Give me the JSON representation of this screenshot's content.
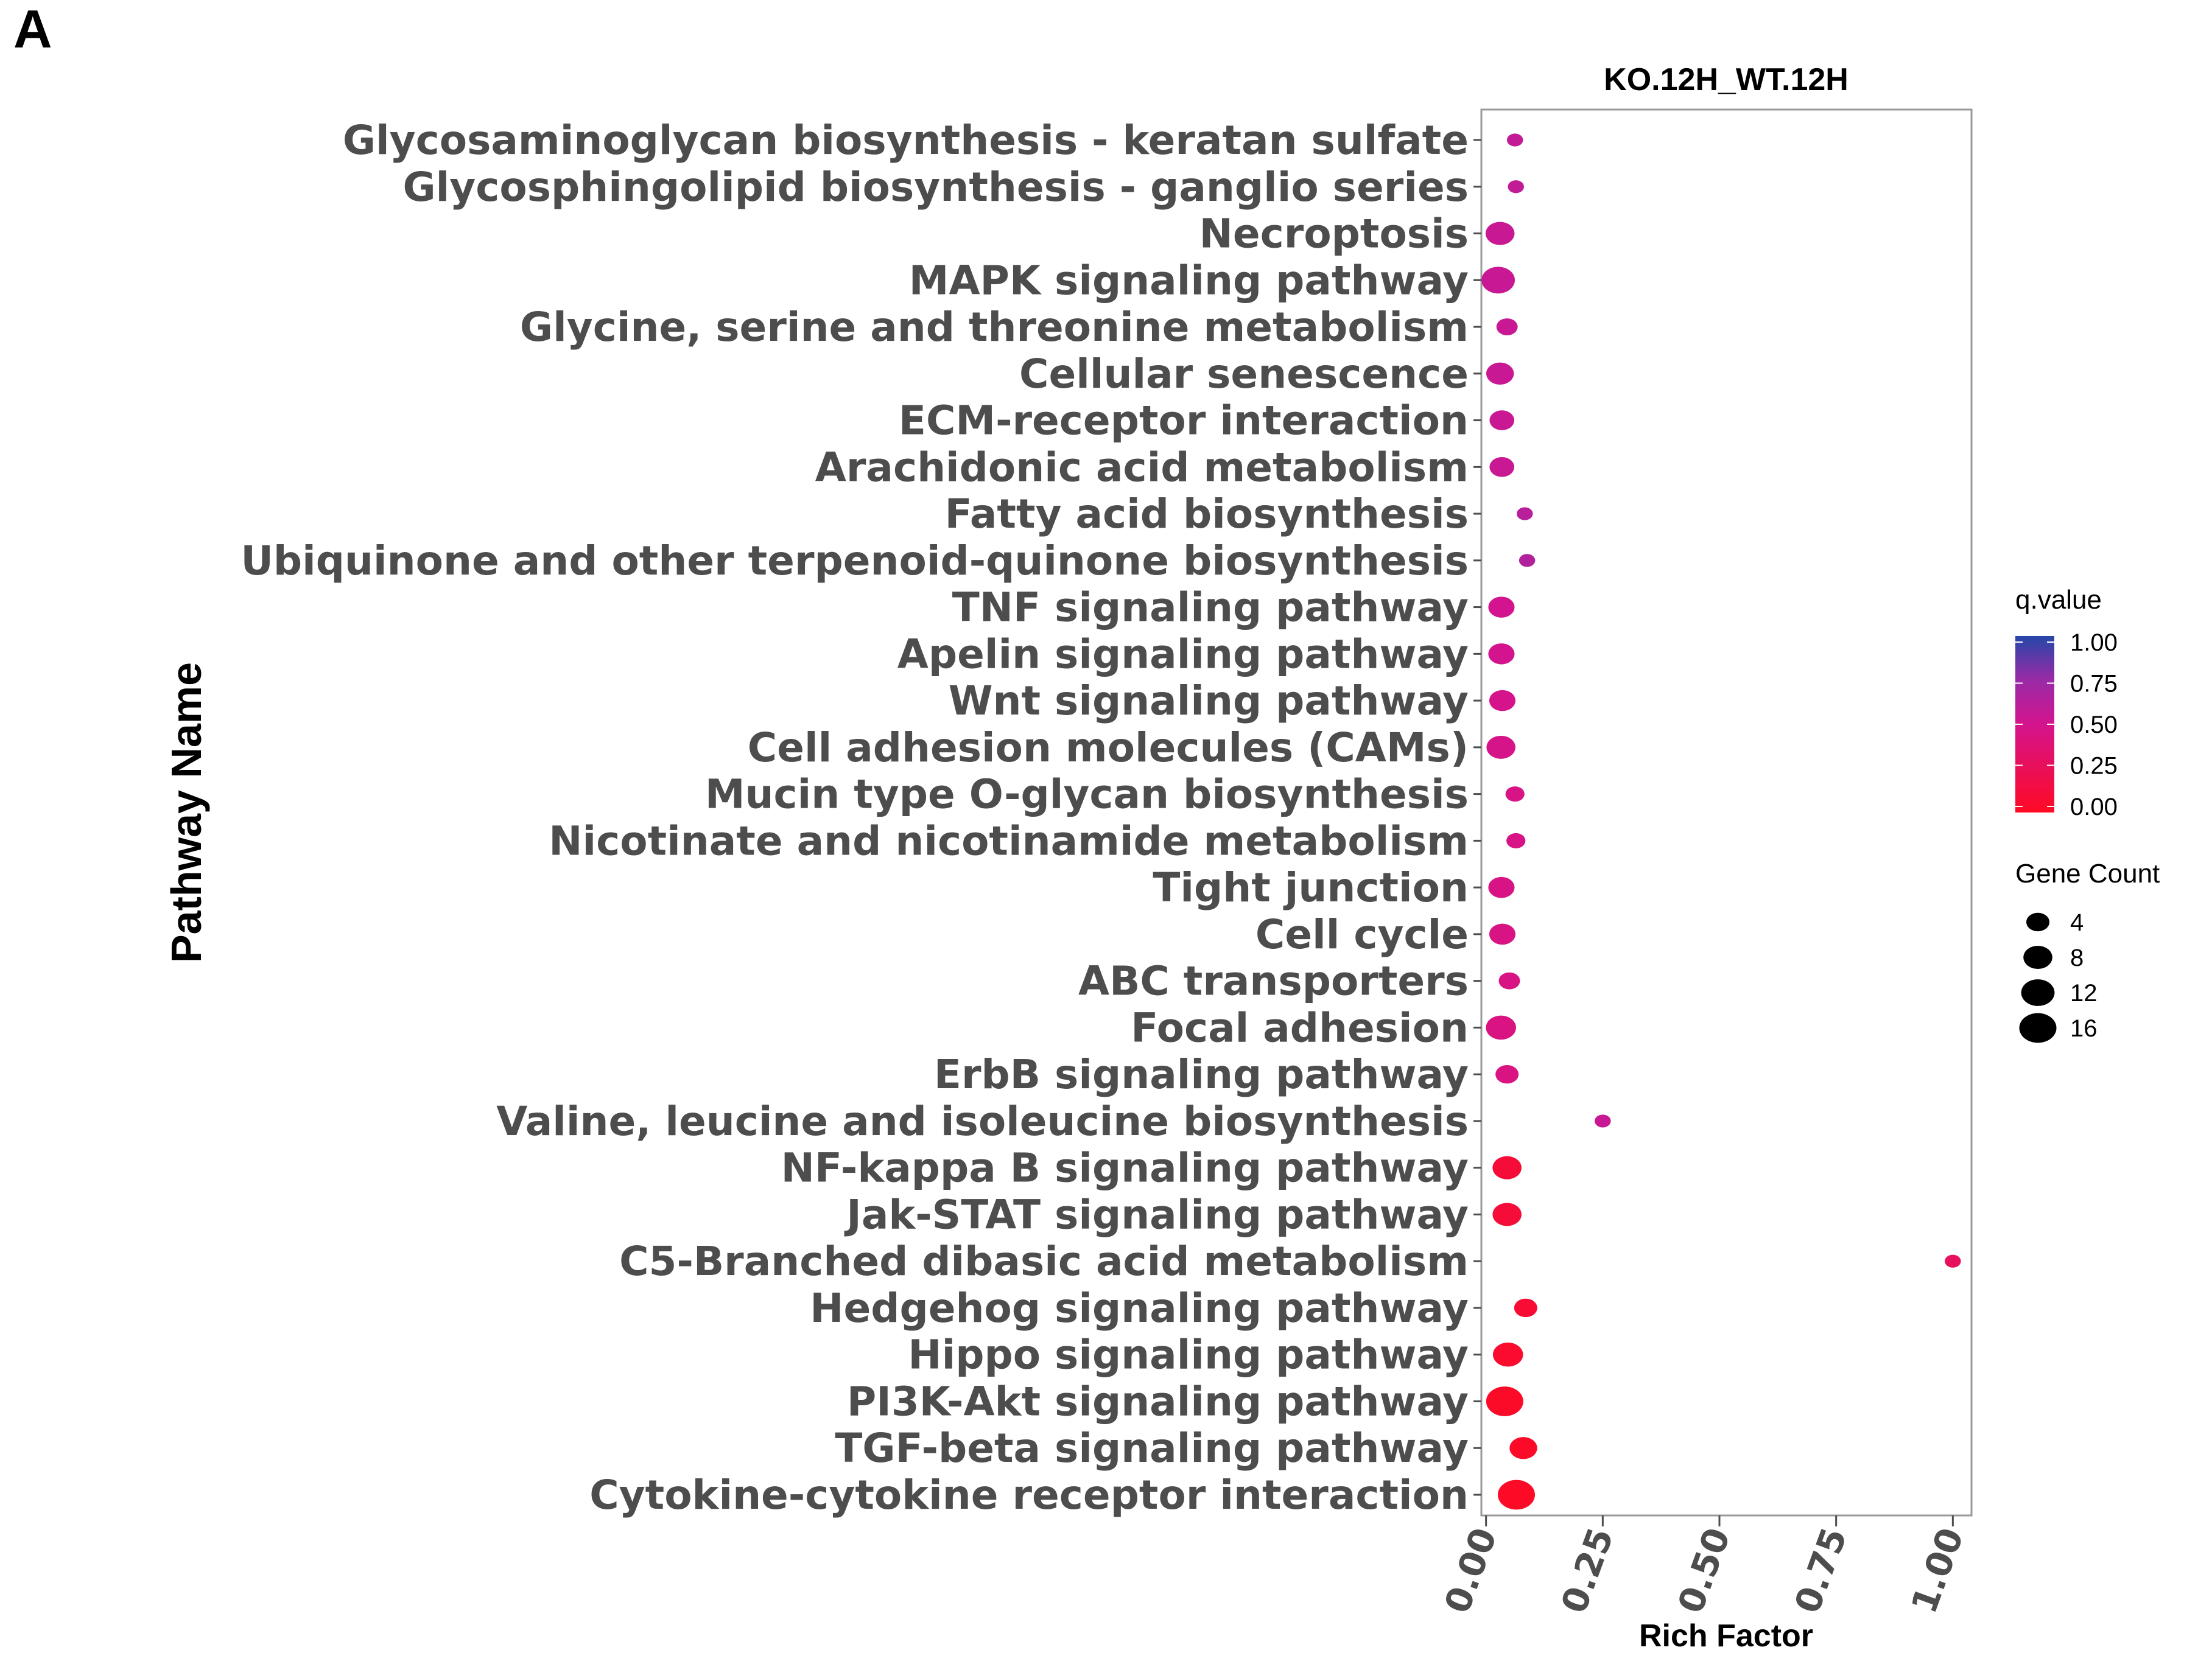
{
  "panel_label": "A",
  "chart_data": {
    "type": "scatter",
    "title": "KO.12H_WT.12H",
    "xlabel": "Rich Factor",
    "ylabel": "Pathway Name",
    "xlim": [
      -0.01,
      1.04
    ],
    "xticks": [
      "0.00",
      "0.25",
      "0.50",
      "0.75",
      "1.00"
    ],
    "grid": false,
    "color_legend": {
      "title": "q.value",
      "ticks": [
        "1.00",
        "0.75",
        "0.50",
        "0.25",
        "0.00"
      ],
      "low_color": "#ff0a23",
      "high_color": "#2547a8"
    },
    "size_legend": {
      "title": "Gene Count",
      "values": [
        4,
        8,
        12,
        16
      ]
    },
    "points": [
      {
        "pathway": "Glycosaminoglycan biosynthesis - keratan sulfate",
        "rich_factor": 0.062,
        "q_value": 0.58,
        "gene_count": 1
      },
      {
        "pathway": "Glycosphingolipid biosynthesis - ganglio series",
        "rich_factor": 0.064,
        "q_value": 0.58,
        "gene_count": 1
      },
      {
        "pathway": "Necroptosis",
        "rich_factor": 0.03,
        "q_value": 0.55,
        "gene_count": 8
      },
      {
        "pathway": "MAPK signaling pathway",
        "rich_factor": 0.026,
        "q_value": 0.55,
        "gene_count": 12
      },
      {
        "pathway": "Glycine, serine and threonine metabolism",
        "rich_factor": 0.045,
        "q_value": 0.55,
        "gene_count": 3
      },
      {
        "pathway": "Cellular senescence",
        "rich_factor": 0.03,
        "q_value": 0.55,
        "gene_count": 7
      },
      {
        "pathway": "ECM-receptor interaction",
        "rich_factor": 0.034,
        "q_value": 0.55,
        "gene_count": 5
      },
      {
        "pathway": "Arachidonic acid metabolism",
        "rich_factor": 0.034,
        "q_value": 0.55,
        "gene_count": 5
      },
      {
        "pathway": "Fatty acid biosynthesis",
        "rich_factor": 0.083,
        "q_value": 0.62,
        "gene_count": 1
      },
      {
        "pathway": "Ubiquinone and other terpenoid-quinone biosynthesis",
        "rich_factor": 0.088,
        "q_value": 0.65,
        "gene_count": 1
      },
      {
        "pathway": "TNF signaling pathway",
        "rich_factor": 0.033,
        "q_value": 0.5,
        "gene_count": 6
      },
      {
        "pathway": "Apelin signaling pathway",
        "rich_factor": 0.033,
        "q_value": 0.5,
        "gene_count": 6
      },
      {
        "pathway": "Wnt signaling pathway",
        "rich_factor": 0.035,
        "q_value": 0.49,
        "gene_count": 6
      },
      {
        "pathway": "Cell adhesion molecules (CAMs)",
        "rich_factor": 0.032,
        "q_value": 0.48,
        "gene_count": 8
      },
      {
        "pathway": "Mucin type O-glycan biosynthesis",
        "rich_factor": 0.062,
        "q_value": 0.46,
        "gene_count": 2
      },
      {
        "pathway": "Nicotinate and nicotinamide metabolism",
        "rich_factor": 0.064,
        "q_value": 0.46,
        "gene_count": 2
      },
      {
        "pathway": "Tight junction",
        "rich_factor": 0.033,
        "q_value": 0.45,
        "gene_count": 6
      },
      {
        "pathway": "Cell cycle",
        "rich_factor": 0.035,
        "q_value": 0.45,
        "gene_count": 6
      },
      {
        "pathway": "ABC transporters",
        "rich_factor": 0.05,
        "q_value": 0.45,
        "gene_count": 3
      },
      {
        "pathway": "Focal adhesion",
        "rich_factor": 0.032,
        "q_value": 0.44,
        "gene_count": 9
      },
      {
        "pathway": "ErbB signaling pathway",
        "rich_factor": 0.045,
        "q_value": 0.44,
        "gene_count": 4
      },
      {
        "pathway": "Valine, leucine and isoleucine biosynthesis",
        "rich_factor": 0.25,
        "q_value": 0.55,
        "gene_count": 1
      },
      {
        "pathway": "NF-kappa B signaling pathway",
        "rich_factor": 0.045,
        "q_value": 0.1,
        "gene_count": 8
      },
      {
        "pathway": "Jak-STAT signaling pathway",
        "rich_factor": 0.045,
        "q_value": 0.1,
        "gene_count": 8
      },
      {
        "pathway": "C5-Branched dibasic acid metabolism",
        "rich_factor": 1.0,
        "q_value": 0.28,
        "gene_count": 1
      },
      {
        "pathway": "Hedgehog signaling pathway",
        "rich_factor": 0.085,
        "q_value": 0.08,
        "gene_count": 4
      },
      {
        "pathway": "Hippo signaling pathway",
        "rich_factor": 0.047,
        "q_value": 0.05,
        "gene_count": 9
      },
      {
        "pathway": "PI3K-Akt signaling pathway",
        "rich_factor": 0.04,
        "q_value": 0.03,
        "gene_count": 16
      },
      {
        "pathway": "TGF-beta signaling pathway",
        "rich_factor": 0.08,
        "q_value": 0.03,
        "gene_count": 7
      },
      {
        "pathway": "Cytokine-cytokine receptor interaction",
        "rich_factor": 0.065,
        "q_value": 0.02,
        "gene_count": 16
      }
    ]
  }
}
